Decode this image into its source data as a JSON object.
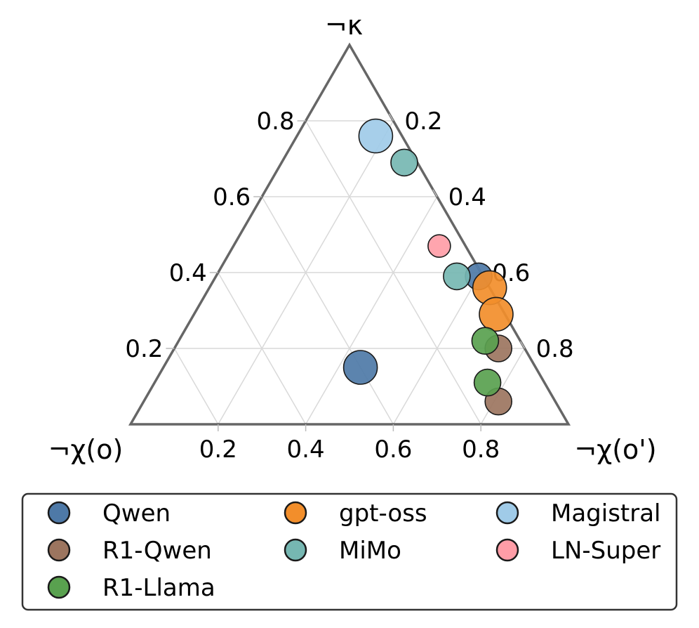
{
  "chart_data": {
    "type": "scatter",
    "subtype": "ternary",
    "axes": {
      "top": "¬κ",
      "left": "¬χ(o)",
      "right": "¬χ(o')"
    },
    "ticks": {
      "bottom": [
        "0.2",
        "0.4",
        "0.6",
        "0.8"
      ],
      "left": [
        "0.2",
        "0.4",
        "0.6",
        "0.8"
      ],
      "right": [
        "0.2",
        "0.4",
        "0.6",
        "0.8"
      ]
    },
    "grid": true,
    "legend_placement": "bottom",
    "series": [
      {
        "name": "Qwen",
        "color": "#4e79a7",
        "points": [
          {
            "kappa": 0.15,
            "chi_o": 0.4,
            "size": "large"
          },
          {
            "kappa": 0.39,
            "chi_o": 0.01,
            "size": "small"
          }
        ]
      },
      {
        "name": "gpt-oss",
        "color": "#f28e2b",
        "points": [
          {
            "kappa": 0.36,
            "chi_o": 0.0,
            "size": "large"
          },
          {
            "kappa": 0.29,
            "chi_o": 0.02,
            "size": "large"
          }
        ]
      },
      {
        "name": "Magistral",
        "color": "#a0cbe8",
        "points": [
          {
            "kappa": 0.76,
            "chi_o": 0.06,
            "size": "large"
          }
        ]
      },
      {
        "name": "R1-Qwen",
        "color": "#9c755f",
        "points": [
          {
            "kappa": 0.2,
            "chi_o": 0.06,
            "size": "small"
          },
          {
            "kappa": 0.06,
            "chi_o": 0.13,
            "size": "small"
          }
        ]
      },
      {
        "name": "MiMo",
        "color": "#76b7b2",
        "points": [
          {
            "kappa": 0.69,
            "chi_o": 0.03,
            "size": "small"
          },
          {
            "kappa": 0.39,
            "chi_o": 0.06,
            "size": "small"
          }
        ]
      },
      {
        "name": "LN-Super",
        "color": "#ff9da7",
        "points": [
          {
            "kappa": 0.47,
            "chi_o": 0.06,
            "size": "tiny"
          }
        ]
      },
      {
        "name": "R1-Llama",
        "color": "#59a14f",
        "points": [
          {
            "kappa": 0.22,
            "chi_o": 0.08,
            "size": "small"
          },
          {
            "kappa": 0.11,
            "chi_o": 0.13,
            "size": "small"
          }
        ]
      }
    ],
    "legend": [
      [
        "Qwen",
        "gpt-oss",
        "Magistral"
      ],
      [
        "R1-Qwen",
        "MiMo",
        "LN-Super"
      ],
      [
        "R1-Llama"
      ]
    ]
  }
}
